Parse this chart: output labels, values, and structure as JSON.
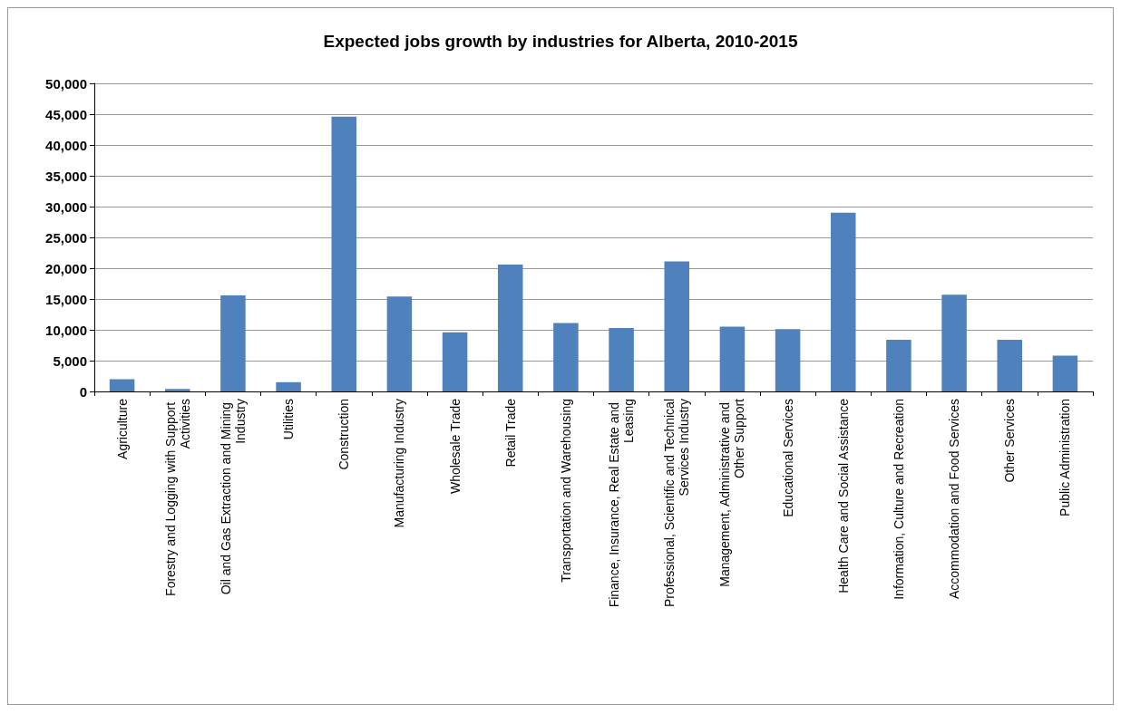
{
  "chart_data": {
    "type": "bar",
    "title": "Expected jobs growth by industries for Alberta, 2010-2015",
    "categories": [
      "Agriculture",
      "Forestry and Logging with Support Activities",
      "Oil and Gas Extraction and Mining Industry",
      "Utilities",
      "Construction",
      "Manufacturing Industry",
      "Wholesale Trade",
      "Retail Trade",
      "Transportation and Warehousing",
      "Finance, Insurance, Real Estate and Leasing",
      "Professional, Scientific and Technical Services Industry",
      "Management, Administrative and Other Support",
      "Educational Services",
      "Health Care and Social Assistance",
      "Information, Culture and Recreation",
      "Accommodation and Food Services",
      "Other Services",
      "Public Administration"
    ],
    "values": [
      2000,
      400,
      15600,
      1500,
      44600,
      15400,
      9600,
      20600,
      11100,
      10300,
      21100,
      10500,
      10100,
      29000,
      8400,
      15700,
      8400,
      5800
    ],
    "color": "#4f81bd",
    "ylim": [
      0,
      50000
    ],
    "yticks": [
      {
        "value": 0,
        "label": "0"
      },
      {
        "value": 5000,
        "label": "5,000"
      },
      {
        "value": 10000,
        "label": "10,000"
      },
      {
        "value": 15000,
        "label": "15,000"
      },
      {
        "value": 20000,
        "label": "20,000"
      },
      {
        "value": 25000,
        "label": "25,000"
      },
      {
        "value": 30000,
        "label": "30,000"
      },
      {
        "value": 35000,
        "label": "35,000"
      },
      {
        "value": 40000,
        "label": "40,000"
      },
      {
        "value": 45000,
        "label": "45,000"
      },
      {
        "value": 50000,
        "label": "50,000"
      }
    ],
    "grid": true
  }
}
